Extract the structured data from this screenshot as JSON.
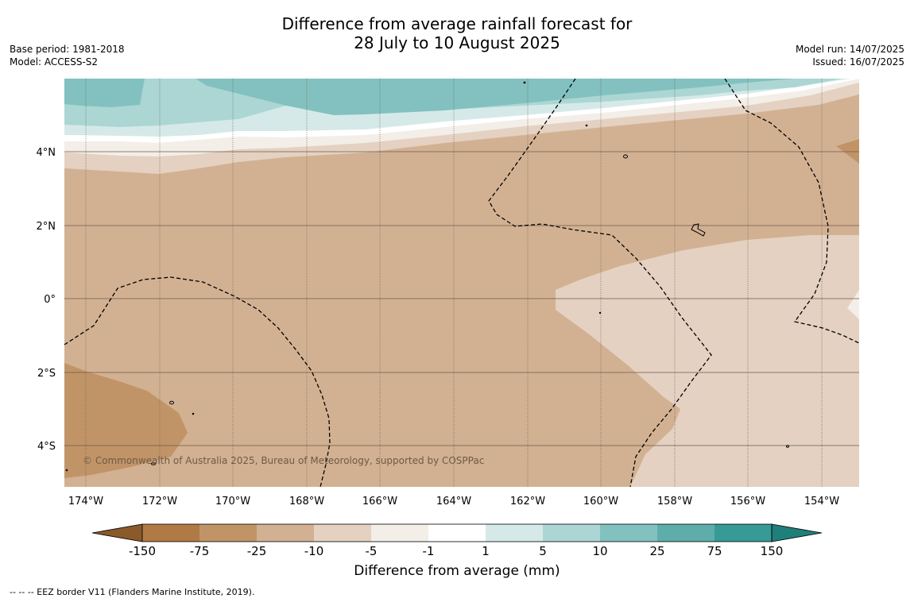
{
  "title_line1": "Difference from average rainfall forecast for",
  "title_line2": "28 July to 10 August 2025",
  "base_period": "Base period: 1981-2018",
  "model": "Model: ACCESS-S2",
  "model_run": "Model run: 14/07/2025",
  "issued": "Issued: 16/07/2025",
  "copyright": "© Commonwealth of Australia 2025, Bureau of Meteorology, supported by COSPPac",
  "colorbar_label": "Difference from average (mm)",
  "footnote": "--  --  -- EEZ border V11 (Flanders Marine Institute, 2019).",
  "lon_labels": [
    "174°W",
    "172°W",
    "170°W",
    "168°W",
    "166°W",
    "164°W",
    "162°W",
    "160°W",
    "158°W",
    "156°W",
    "154°W"
  ],
  "lat_labels": [
    "4°N",
    "2°N",
    "0°",
    "2°S",
    "4°S"
  ],
  "colorbar": {
    "ticks": [
      "-150",
      "-75",
      "-25",
      "-10",
      "-5",
      "-1",
      "1",
      "5",
      "10",
      "25",
      "75",
      "150"
    ],
    "colors": [
      "#8a5a2b",
      "#b07a45",
      "#c19468",
      "#d2b192",
      "#e4d1c1",
      "#f3eee7",
      "#ffffff",
      "#d5eae8",
      "#acd6d4",
      "#82c1bf",
      "#5eadaa",
      "#379a96",
      "#1f7f7b"
    ]
  }
}
